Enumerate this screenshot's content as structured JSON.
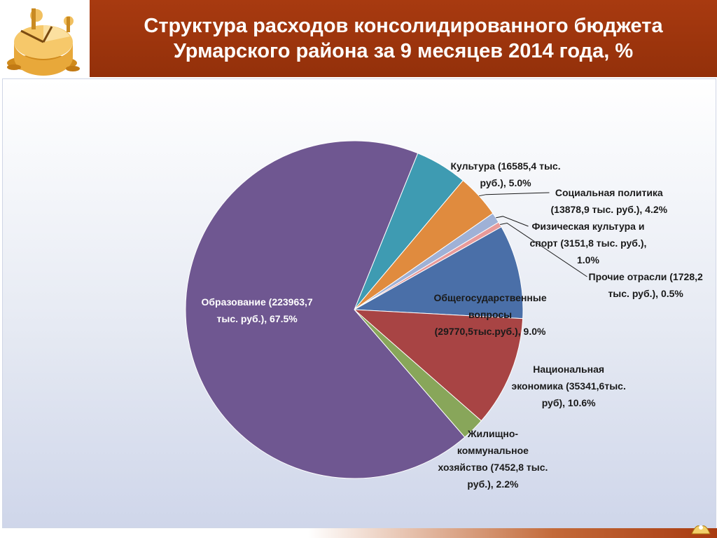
{
  "header": {
    "title": "Структура расходов консолидированного  бюджета\nУрмарского района  за 9 месяцев 2014 года, %",
    "logo_icon": "budget-pie-coins-icon"
  },
  "footer": {
    "corner_icon": "decorative-flourish-icon"
  },
  "colors": {
    "header_bg": "#9b330c",
    "education": "#6f5791",
    "culture": "#3e9bb2",
    "social": "#e08b3e",
    "sport": "#9fb1d6",
    "other": "#e89a9a",
    "general": "#4a6fa8",
    "economy": "#a84444",
    "housing": "#88a65a"
  },
  "chart_data": {
    "type": "pie",
    "title": "Структура расходов консолидированного  бюджета Урмарского района  за 9 месяцев 2014 года, %",
    "slices": [
      {
        "key": "culture",
        "label": "Культура  (16585,4 тыс.\nруб.), 5.0%",
        "value": 5.0,
        "color": "#3e9bb2"
      },
      {
        "key": "social",
        "label": "Социальная политика\n(13878,9 тыс. руб.), 4.2%",
        "value": 4.2,
        "color": "#e08b3e"
      },
      {
        "key": "sport",
        "label": "Физическая культура и\nспорт (3151,8 тыс. руб.),\n1.0%",
        "value": 1.0,
        "color": "#9fb1d6"
      },
      {
        "key": "other",
        "label": "Прочие отрасли (1728,2\nтыс. руб.), 0.5%",
        "value": 0.5,
        "color": "#e89a9a"
      },
      {
        "key": "general",
        "label": "Общегосударственные\nвопросы\n(29770,5тыс.руб.), 9.0%",
        "value": 9.0,
        "color": "#4a6fa8"
      },
      {
        "key": "economy",
        "label": "Национальная\nэкономика (35341,6тыс.\nруб), 10.6%",
        "value": 10.6,
        "color": "#a84444"
      },
      {
        "key": "housing",
        "label": "Жилищно-\nкоммунальное\nхозяйство  (7452,8 тыс.\nруб.), 2.2%",
        "value": 2.2,
        "color": "#88a65a"
      },
      {
        "key": "education",
        "label": "Образование (223963,7\nтыс. руб.), 67.5%",
        "value": 67.5,
        "color": "#6f5791"
      }
    ],
    "legend": "none"
  }
}
